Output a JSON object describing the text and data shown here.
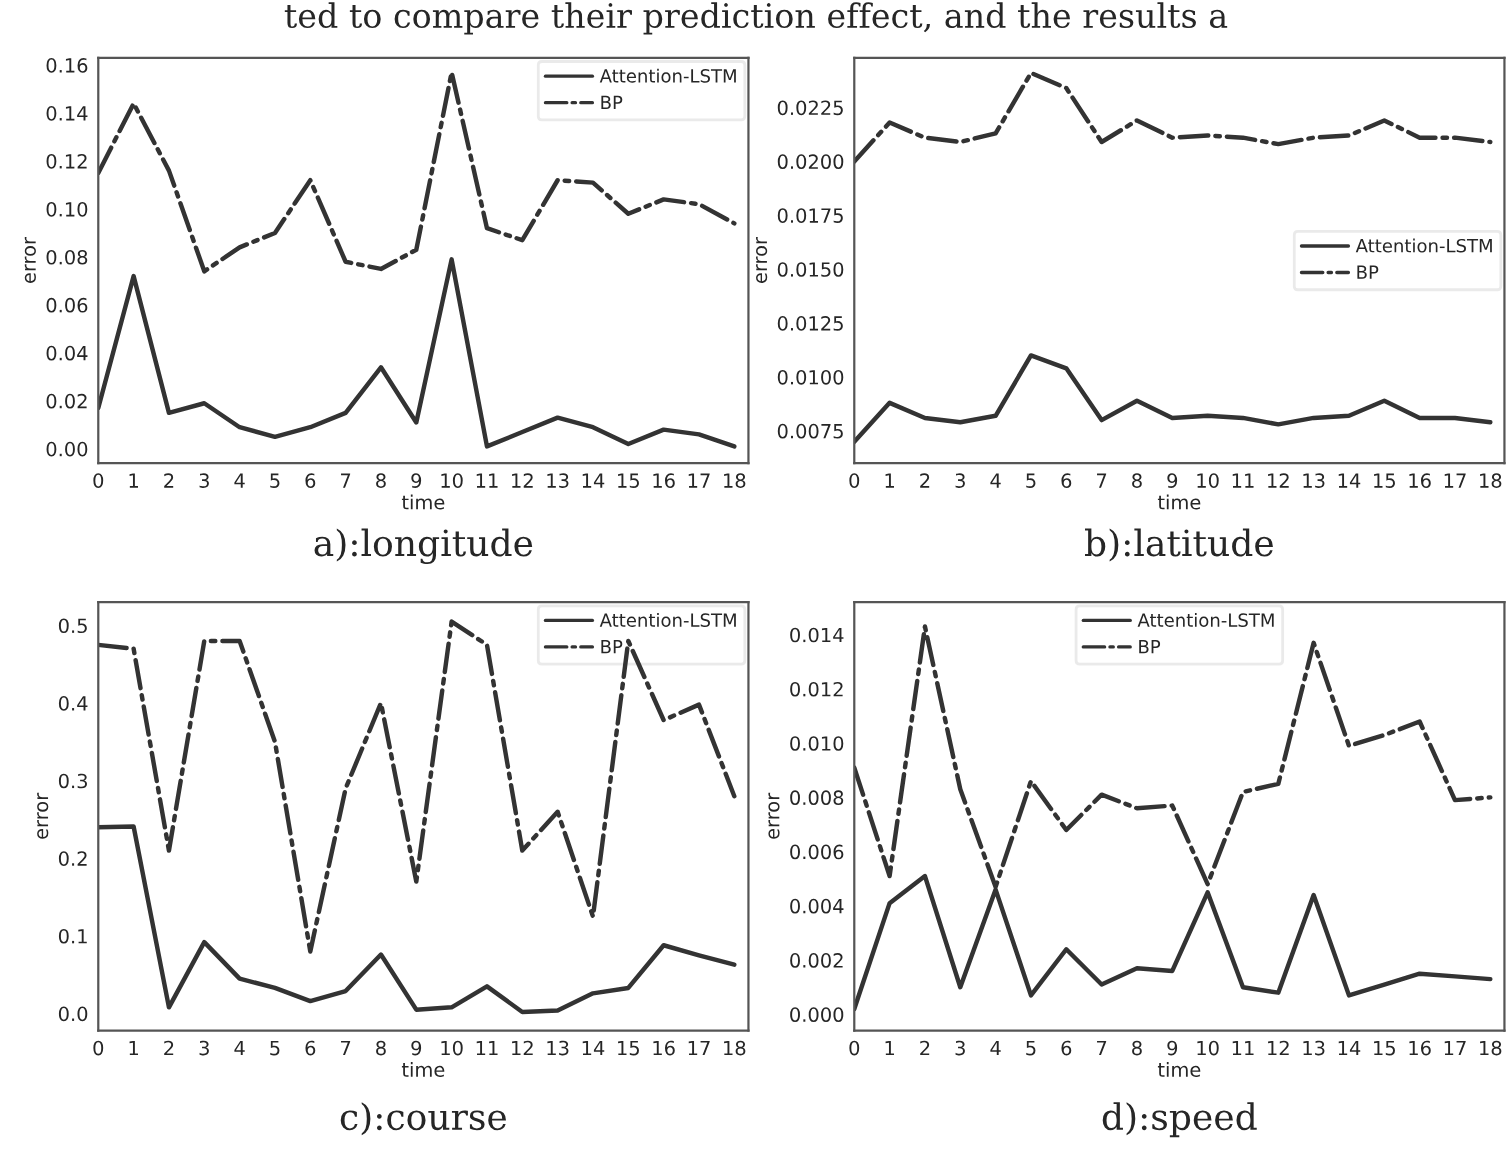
{
  "chart_data": [
    {
      "type": "line",
      "title": "a):longitude",
      "xlabel": "time",
      "ylabel": "error",
      "x": [
        0,
        1,
        2,
        3,
        4,
        5,
        6,
        7,
        8,
        9,
        10,
        11,
        12,
        13,
        14,
        15,
        16,
        17,
        18
      ],
      "xlim": [
        0,
        18.4
      ],
      "xticks": [
        0,
        1,
        2,
        3,
        4,
        5,
        6,
        7,
        8,
        9,
        10,
        11,
        12,
        13,
        14,
        15,
        16,
        17,
        18
      ],
      "ylim": [
        -0.006,
        0.163
      ],
      "yticks": [
        {
          "value": 0,
          "label": "0.00"
        },
        {
          "value": 0.02,
          "label": "0.02"
        },
        {
          "value": 0.04,
          "label": "0.04"
        },
        {
          "value": 0.06,
          "label": "0.06"
        },
        {
          "value": 0.08,
          "label": "0.08"
        },
        {
          "value": 0.1,
          "label": "0.10"
        },
        {
          "value": 0.12,
          "label": "0.12"
        },
        {
          "value": 0.14,
          "label": "0.14"
        },
        {
          "value": 0.16,
          "label": "0.16"
        }
      ],
      "legend": "top right",
      "annotations": [
        "ted to compare their prediction effect, and the results a"
      ],
      "series": [
        {
          "name": "Attention-LSTM",
          "color": "#333333",
          "line_style": "solid",
          "values": [
            0.017,
            0.072,
            0.015,
            0.019,
            0.009,
            0.005,
            0.009,
            0.015,
            0.034,
            0.011,
            0.079,
            0.001,
            0.007,
            0.013,
            0.009,
            0.002,
            0.008,
            0.006,
            0.001
          ]
        },
        {
          "name": "BP",
          "color": "#333333",
          "line_style": "dashdot",
          "values": [
            0.115,
            0.144,
            0.116,
            0.074,
            0.084,
            0.09,
            0.112,
            0.078,
            0.075,
            0.083,
            0.157,
            0.092,
            0.087,
            0.112,
            0.111,
            0.098,
            0.104,
            0.102,
            0.094
          ]
        }
      ]
    },
    {
      "type": "line",
      "title": "b):latitude",
      "xlabel": "time",
      "ylabel": "error",
      "x": [
        0,
        1,
        2,
        3,
        4,
        5,
        6,
        7,
        8,
        9,
        10,
        11,
        12,
        13,
        14,
        15,
        16,
        17,
        18
      ],
      "xlim": [
        0,
        18.4
      ],
      "xticks": [
        0,
        1,
        2,
        3,
        4,
        5,
        6,
        7,
        8,
        9,
        10,
        11,
        12,
        13,
        14,
        15,
        16,
        17,
        18
      ],
      "ylim": [
        0.006,
        0.0248
      ],
      "yticks": [
        0.0075,
        {
          "value": 0.01,
          "label": "0.0100"
        },
        0.0125,
        {
          "value": 0.015,
          "label": "0.0150"
        },
        0.0175,
        {
          "value": 0.02,
          "label": "0.0200"
        },
        0.0225
      ],
      "legend": "right",
      "series": [
        {
          "name": "Attention-LSTM",
          "color": "#333333",
          "line_style": "solid",
          "values": [
            0.007,
            0.0088,
            0.0081,
            0.0079,
            0.0082,
            0.011,
            0.0104,
            0.008,
            0.0089,
            0.0081,
            0.0082,
            0.0081,
            0.0078,
            0.0081,
            0.0082,
            0.0089,
            0.0081,
            0.0081,
            0.0079
          ]
        },
        {
          "name": "BP",
          "color": "#333333",
          "line_style": "dashdot",
          "values": [
            0.02,
            0.0218,
            0.0211,
            0.0209,
            0.0213,
            0.0241,
            0.0234,
            0.0209,
            0.0219,
            0.0211,
            0.0212,
            0.0211,
            0.0208,
            0.0211,
            0.0212,
            0.0219,
            0.0211,
            0.0211,
            0.0209
          ]
        }
      ]
    },
    {
      "type": "line",
      "title": "c):course",
      "xlabel": "time",
      "ylabel": "error",
      "x": [
        0,
        1,
        2,
        3,
        4,
        5,
        6,
        7,
        8,
        9,
        10,
        11,
        12,
        13,
        14,
        15,
        16,
        17,
        18
      ],
      "xlim": [
        0,
        18.4
      ],
      "xticks": [
        0,
        1,
        2,
        3,
        4,
        5,
        6,
        7,
        8,
        9,
        10,
        11,
        12,
        13,
        14,
        15,
        16,
        17,
        18
      ],
      "ylim": [
        -0.022,
        0.53
      ],
      "yticks": [
        {
          "value": 0,
          "label": "0.0"
        },
        0.1,
        0.2,
        0.3,
        0.4,
        0.5
      ],
      "legend": "top right",
      "series": [
        {
          "name": "Attention-LSTM",
          "color": "#333333",
          "line_style": "solid",
          "values": [
            0.24,
            0.241,
            0.008,
            0.092,
            0.045,
            0.033,
            0.016,
            0.029,
            0.076,
            0.005,
            0.008,
            0.035,
            0.002,
            0.004,
            0.026,
            0.033,
            0.088,
            0.075,
            0.063
          ]
        },
        {
          "name": "BP",
          "color": "#333333",
          "line_style": "dashdot",
          "values": [
            0.475,
            0.47,
            0.21,
            0.48,
            0.48,
            0.35,
            0.08,
            0.29,
            0.4,
            0.17,
            0.505,
            0.475,
            0.21,
            0.26,
            0.125,
            0.48,
            0.378,
            0.398,
            0.28
          ]
        }
      ]
    },
    {
      "type": "line",
      "title": "d):speed",
      "xlabel": "time",
      "ylabel": "error",
      "x": [
        0,
        1,
        2,
        3,
        4,
        5,
        6,
        7,
        8,
        9,
        10,
        11,
        12,
        13,
        14,
        15,
        16,
        17,
        18
      ],
      "xlim": [
        0,
        18.4
      ],
      "xticks": [
        0,
        1,
        2,
        3,
        4,
        5,
        6,
        7,
        8,
        9,
        10,
        11,
        12,
        13,
        14,
        15,
        16,
        17,
        18
      ],
      "ylim": [
        -0.0006,
        0.0152
      ],
      "yticks": [
        {
          "value": 0,
          "label": "0.000"
        },
        0.002,
        0.004,
        0.006,
        0.008,
        {
          "value": 0.01,
          "label": "0.010"
        },
        0.012,
        0.014
      ],
      "legend": "top",
      "series": [
        {
          "name": "Attention-LSTM",
          "color": "#333333",
          "line_style": "solid",
          "values": [
            0.0002,
            0.0041,
            0.0051,
            0.001,
            0.0046,
            0.0007,
            0.0024,
            0.0011,
            0.0017,
            0.0016,
            0.0045,
            0.001,
            0.0008,
            0.0044,
            0.0007,
            0.0011,
            0.0015,
            0.0014,
            0.0013
          ]
        },
        {
          "name": "BP",
          "color": "#333333",
          "line_style": "dashdot",
          "values": [
            0.0091,
            0.0051,
            0.0143,
            0.0083,
            0.0047,
            0.0086,
            0.0068,
            0.0081,
            0.0076,
            0.0077,
            0.0048,
            0.0082,
            0.0085,
            0.0137,
            0.0099,
            0.0103,
            0.0108,
            0.0079,
            0.008
          ]
        }
      ]
    }
  ]
}
